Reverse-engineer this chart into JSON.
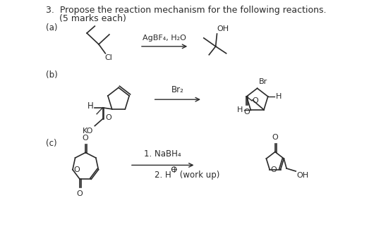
{
  "title_number": "3.",
  "title_text": "Propose the reaction mechanism for the following reactions.",
  "subtitle_text": "(5 marks each)",
  "label_a": "(a)",
  "label_b": "(b)",
  "label_c": "(c)",
  "reagent_a": "AgBF₄, H₂O",
  "reagent_b": "Br₂",
  "reagent_c1": "1. NaBH₄",
  "reagent_c2": "2. H⁺ (work up)",
  "bg_color": "#ffffff",
  "text_color": "#2a2a2a",
  "font_size": 8.5,
  "title_font_size": 9.0
}
